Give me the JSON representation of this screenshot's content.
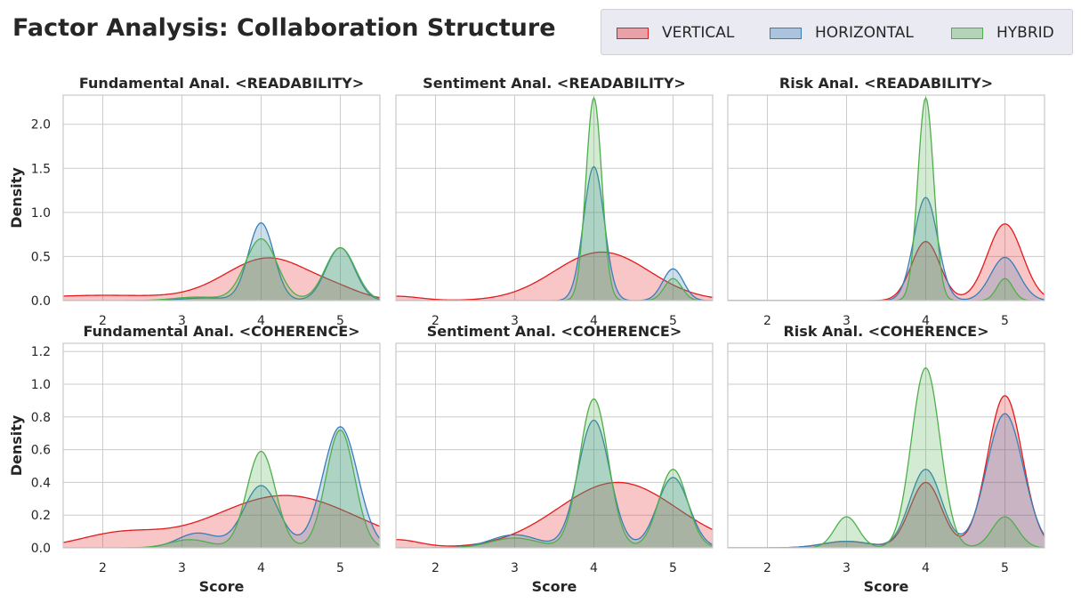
{
  "title": "Factor Analysis: Collaboration Structure",
  "colors": {
    "VERTICAL": "#e41a1c",
    "HORIZONTAL": "#377eb8",
    "HYBRID": "#4daf4a",
    "grid": "#cccccc",
    "spine": "#cccccc"
  },
  "legend": [
    {
      "label": "VERTICAL",
      "color": "#e41a1c"
    },
    {
      "label": "HORIZONTAL",
      "color": "#377eb8"
    },
    {
      "label": "HYBRID",
      "color": "#4daf4a"
    }
  ],
  "chart_data": [
    {
      "type": "area",
      "title": "Fundamental Anal. <READABILITY>",
      "xlabel": "",
      "ylabel": "Density",
      "xlim": [
        1.5,
        5.5
      ],
      "ylim": [
        0,
        2.33
      ],
      "xticks": [
        "2",
        "3",
        "4",
        "5"
      ],
      "yticks": [
        "0.0",
        "0.5",
        "1.0",
        "1.5",
        "2.0"
      ],
      "series": [
        {
          "name": "VERTICAL",
          "kde": [
            [
              0.06,
              2.0,
              0.9
            ],
            [
              0.48,
              4.1,
              0.55
            ],
            [
              0.06,
              5.0,
              0.3
            ]
          ]
        },
        {
          "name": "HORIZONTAL",
          "kde": [
            [
              0.03,
              3.3,
              0.3
            ],
            [
              0.88,
              4.0,
              0.16
            ],
            [
              0.6,
              5.0,
              0.18
            ]
          ]
        },
        {
          "name": "HYBRID",
          "kde": [
            [
              0.04,
              3.2,
              0.3
            ],
            [
              0.7,
              4.0,
              0.2
            ],
            [
              0.6,
              5.0,
              0.19
            ]
          ]
        }
      ]
    },
    {
      "type": "area",
      "title": "Sentiment Anal. <READABILITY>",
      "xlabel": "",
      "ylabel": "",
      "xlim": [
        1.5,
        5.5
      ],
      "ylim": [
        0,
        2.33
      ],
      "xticks": [
        "2",
        "3",
        "4",
        "5"
      ],
      "yticks": [
        "0.0",
        "0.5",
        "1.0",
        "1.5",
        "2.0"
      ],
      "series": [
        {
          "name": "VERTICAL",
          "kde": [
            [
              0.05,
              1.5,
              0.3
            ],
            [
              0.55,
              4.1,
              0.6
            ]
          ]
        },
        {
          "name": "HORIZONTAL",
          "kde": [
            [
              1.52,
              4.0,
              0.13
            ],
            [
              0.36,
              5.0,
              0.13
            ]
          ]
        },
        {
          "name": "HYBRID",
          "kde": [
            [
              2.3,
              4.0,
              0.1
            ],
            [
              0.25,
              5.0,
              0.11
            ]
          ]
        }
      ]
    },
    {
      "type": "area",
      "title": "Risk Anal. <READABILITY>",
      "xlabel": "",
      "ylabel": "",
      "xlim": [
        1.5,
        5.5
      ],
      "ylim": [
        0,
        2.33
      ],
      "xticks": [
        "2",
        "3",
        "4",
        "5"
      ],
      "yticks": [
        "0.0",
        "0.5",
        "1.0",
        "1.5",
        "2.0"
      ],
      "series": [
        {
          "name": "VERTICAL",
          "kde": [
            [
              0.67,
              4.0,
              0.18
            ],
            [
              0.87,
              5.0,
              0.22
            ]
          ]
        },
        {
          "name": "HORIZONTAL",
          "kde": [
            [
              1.17,
              4.0,
              0.15
            ],
            [
              0.49,
              5.0,
              0.18
            ]
          ]
        },
        {
          "name": "HYBRID",
          "kde": [
            [
              2.3,
              4.0,
              0.1
            ],
            [
              0.25,
              5.0,
              0.1
            ]
          ]
        }
      ]
    },
    {
      "type": "area",
      "title": "Fundamental Anal. <COHERENCE>",
      "xlabel": "Score",
      "ylabel": "Density",
      "xlim": [
        1.5,
        5.5
      ],
      "ylim": [
        0,
        1.25
      ],
      "xticks": [
        "2",
        "3",
        "4",
        "5"
      ],
      "yticks": [
        "0.0",
        "0.2",
        "0.4",
        "0.6",
        "0.8",
        "1.0",
        "1.2"
      ],
      "series": [
        {
          "name": "VERTICAL",
          "kde": [
            [
              0.32,
              4.3,
              0.9
            ],
            [
              0.08,
              2.2,
              0.5
            ]
          ]
        },
        {
          "name": "HORIZONTAL",
          "kde": [
            [
              0.09,
              3.2,
              0.25
            ],
            [
              0.38,
              4.0,
              0.22
            ],
            [
              0.74,
              5.0,
              0.22
            ]
          ]
        },
        {
          "name": "HYBRID",
          "kde": [
            [
              0.05,
              3.1,
              0.25
            ],
            [
              0.59,
              4.0,
              0.18
            ],
            [
              0.72,
              5.0,
              0.18
            ]
          ]
        }
      ]
    },
    {
      "type": "area",
      "title": "Sentiment Anal. <COHERENCE>",
      "xlabel": "Score",
      "ylabel": "",
      "xlim": [
        1.5,
        5.5
      ],
      "ylim": [
        0,
        1.25
      ],
      "xticks": [
        "2",
        "3",
        "4",
        "5"
      ],
      "yticks": [
        "0.0",
        "0.2",
        "0.4",
        "0.6",
        "0.8",
        "1.0",
        "1.2"
      ],
      "series": [
        {
          "name": "VERTICAL",
          "kde": [
            [
              0.05,
              1.5,
              0.3
            ],
            [
              0.4,
              4.3,
              0.75
            ]
          ]
        },
        {
          "name": "HORIZONTAL",
          "kde": [
            [
              0.08,
              3.0,
              0.3
            ],
            [
              0.78,
              4.0,
              0.2
            ],
            [
              0.43,
              5.0,
              0.2
            ]
          ]
        },
        {
          "name": "HYBRID",
          "kde": [
            [
              0.06,
              3.0,
              0.3
            ],
            [
              0.91,
              4.0,
              0.18
            ],
            [
              0.48,
              5.0,
              0.18
            ]
          ]
        }
      ]
    },
    {
      "type": "area",
      "title": "Risk Anal. <COHERENCE>",
      "xlabel": "Score",
      "ylabel": "",
      "xlim": [
        1.5,
        5.5
      ],
      "ylim": [
        0,
        1.25
      ],
      "xticks": [
        "2",
        "3",
        "4",
        "5"
      ],
      "yticks": [
        "0.0",
        "0.2",
        "0.4",
        "0.6",
        "0.8",
        "1.0",
        "1.2"
      ],
      "series": [
        {
          "name": "VERTICAL",
          "kde": [
            [
              0.04,
              3.0,
              0.3
            ],
            [
              0.4,
              4.0,
              0.2
            ],
            [
              0.93,
              5.0,
              0.22
            ]
          ]
        },
        {
          "name": "HORIZONTAL",
          "kde": [
            [
              0.04,
              3.0,
              0.3
            ],
            [
              0.48,
              4.0,
              0.2
            ],
            [
              0.82,
              5.0,
              0.23
            ]
          ]
        },
        {
          "name": "HYBRID",
          "kde": [
            [
              0.19,
              3.0,
              0.15
            ],
            [
              1.1,
              4.0,
              0.18
            ],
            [
              0.19,
              5.0,
              0.16
            ]
          ]
        }
      ]
    }
  ]
}
